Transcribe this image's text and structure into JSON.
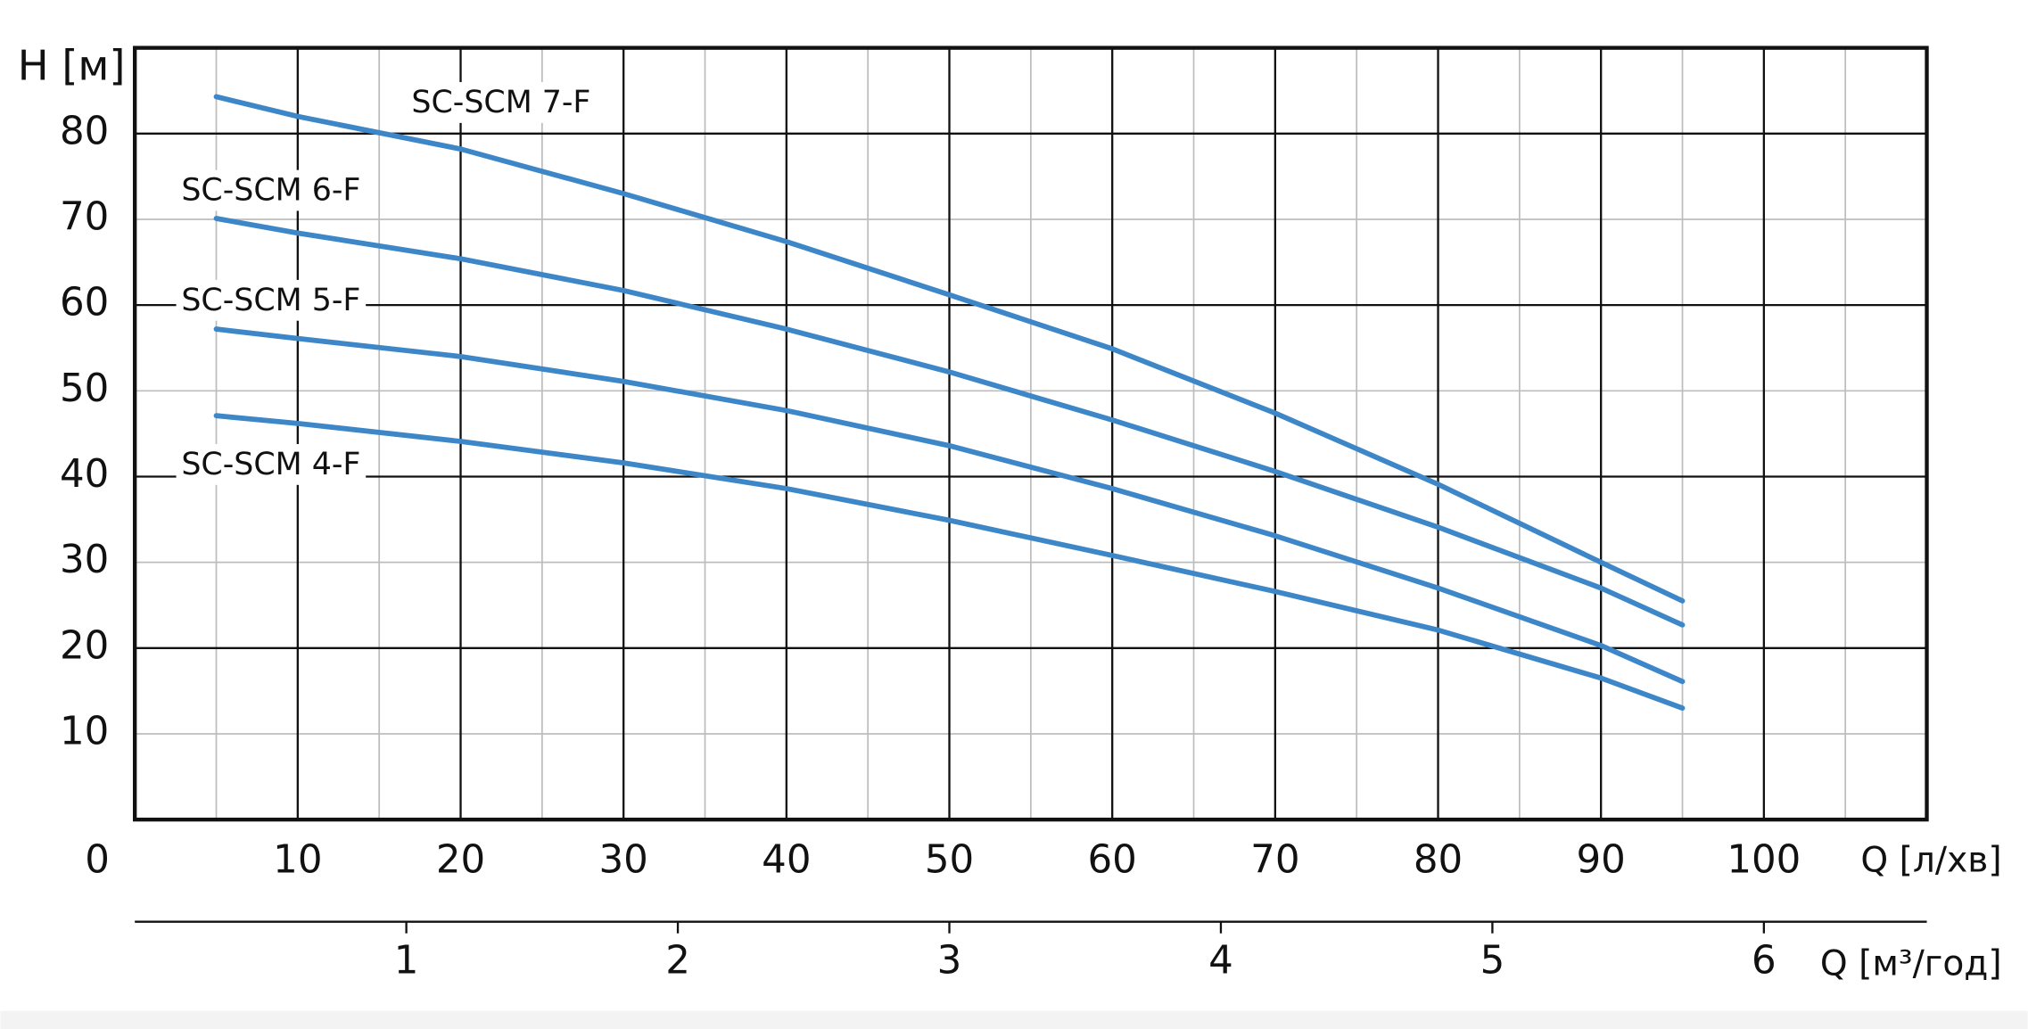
{
  "chart_data": {
    "type": "line",
    "y_label": "H [м]",
    "x_label": "Q [л/хв]",
    "x2_label": "Q [м³/год]",
    "x": [
      5,
      10,
      20,
      30,
      40,
      50,
      60,
      70,
      80,
      90,
      95
    ],
    "series": [
      {
        "name": "SC-SCM 7-F",
        "color": "#3d87c8",
        "values": [
          84.3,
          82,
          78.2,
          73,
          67.4,
          61.2,
          54.9,
          47.4,
          39.1,
          30,
          25.5
        ]
      },
      {
        "name": "SC-SCM 6-F",
        "color": "#3d87c8",
        "values": [
          70.1,
          68.4,
          65.4,
          61.7,
          57.2,
          52.2,
          46.6,
          40.6,
          34.1,
          27,
          22.7
        ]
      },
      {
        "name": "SC-SCM 5-F",
        "color": "#3d87c8",
        "values": [
          57.2,
          56.1,
          54,
          51.1,
          47.7,
          43.6,
          38.6,
          33.1,
          27,
          20.3,
          16.1
        ]
      },
      {
        "name": "SC-SCM 4-F",
        "color": "#3d87c8",
        "values": [
          47.1,
          46.2,
          44.1,
          41.6,
          38.6,
          34.9,
          30.8,
          26.6,
          22.1,
          16.5,
          13
        ]
      }
    ],
    "xlim": [
      0,
      110
    ],
    "xticks": [
      0,
      10,
      20,
      30,
      40,
      50,
      60,
      70,
      80,
      90,
      100
    ],
    "x_minor_ticks": [
      5,
      15,
      25,
      35,
      45,
      55,
      65,
      75,
      85,
      95,
      105
    ],
    "ylim": [
      0,
      90
    ],
    "yticks": [
      10,
      20,
      30,
      40,
      50,
      60,
      70,
      80
    ],
    "x2lim": [
      0,
      6.6
    ],
    "x2ticks": [
      1,
      2,
      3,
      4,
      5,
      6
    ],
    "grid": true
  }
}
